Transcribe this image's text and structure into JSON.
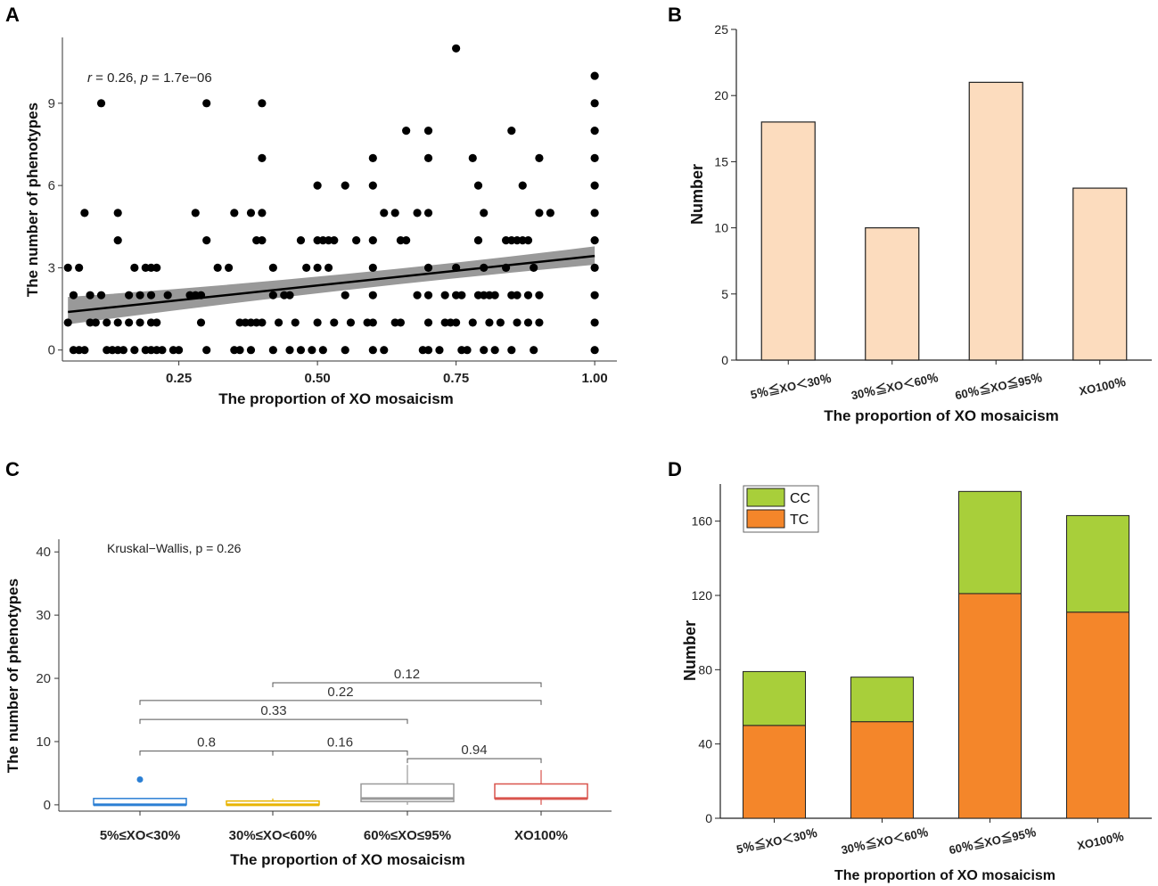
{
  "panel_labels": [
    "A",
    "B",
    "C",
    "D"
  ],
  "chart_data": [
    {
      "panel": "A",
      "type": "scatter",
      "xlabel": "The proportion of XO mosaicism",
      "ylabel": "The number of phenotypes",
      "xlim": [
        0.04,
        1.04
      ],
      "ylim": [
        -0.4,
        11.4
      ],
      "xticks": [
        0.25,
        0.5,
        0.75,
        1.0
      ],
      "xtick_labels": [
        "0.25",
        "0.50",
        "0.75",
        "1.00"
      ],
      "yticks": [
        0,
        3,
        6,
        9
      ],
      "ytick_labels": [
        "0",
        "3",
        "6",
        "9"
      ],
      "annotation": {
        "r_symbol": "r",
        "r_text": " = 0.26, ",
        "p_symbol": "p",
        "p_text": " = 1.7e−06"
      },
      "colors": {
        "points": "#000000",
        "line": "#000000",
        "band": "#999999"
      },
      "regression": {
        "intercept": 1.28,
        "slope": 2.15,
        "band_low": [
          0.45,
          0.32
        ],
        "band_high": [
          0.55,
          0.35
        ]
      },
      "points": [
        [
          0.05,
          1
        ],
        [
          0.05,
          3
        ],
        [
          0.06,
          0
        ],
        [
          0.06,
          2
        ],
        [
          0.07,
          0
        ],
        [
          0.07,
          3
        ],
        [
          0.08,
          0
        ],
        [
          0.08,
          5
        ],
        [
          0.09,
          1
        ],
        [
          0.09,
          2
        ],
        [
          0.1,
          1
        ],
        [
          0.11,
          2
        ],
        [
          0.11,
          9
        ],
        [
          0.12,
          0
        ],
        [
          0.12,
          1
        ],
        [
          0.13,
          0
        ],
        [
          0.14,
          0
        ],
        [
          0.14,
          1
        ],
        [
          0.14,
          4
        ],
        [
          0.14,
          5
        ],
        [
          0.15,
          0
        ],
        [
          0.16,
          1
        ],
        [
          0.16,
          2
        ],
        [
          0.17,
          0
        ],
        [
          0.17,
          3
        ],
        [
          0.18,
          1
        ],
        [
          0.18,
          2
        ],
        [
          0.19,
          0
        ],
        [
          0.19,
          3
        ],
        [
          0.2,
          0
        ],
        [
          0.2,
          1
        ],
        [
          0.2,
          2
        ],
        [
          0.2,
          3
        ],
        [
          0.21,
          0
        ],
        [
          0.21,
          1
        ],
        [
          0.21,
          3
        ],
        [
          0.22,
          0
        ],
        [
          0.23,
          2
        ],
        [
          0.24,
          0
        ],
        [
          0.25,
          0
        ],
        [
          0.27,
          2
        ],
        [
          0.28,
          2
        ],
        [
          0.28,
          5
        ],
        [
          0.29,
          1
        ],
        [
          0.29,
          2
        ],
        [
          0.3,
          0
        ],
        [
          0.3,
          4
        ],
        [
          0.3,
          9
        ],
        [
          0.32,
          3
        ],
        [
          0.34,
          3
        ],
        [
          0.35,
          0
        ],
        [
          0.35,
          5
        ],
        [
          0.36,
          0
        ],
        [
          0.36,
          1
        ],
        [
          0.37,
          1
        ],
        [
          0.38,
          0
        ],
        [
          0.38,
          1
        ],
        [
          0.38,
          5
        ],
        [
          0.39,
          1
        ],
        [
          0.39,
          4
        ],
        [
          0.4,
          1
        ],
        [
          0.4,
          4
        ],
        [
          0.4,
          5
        ],
        [
          0.4,
          7
        ],
        [
          0.4,
          9
        ],
        [
          0.42,
          0
        ],
        [
          0.42,
          2
        ],
        [
          0.42,
          3
        ],
        [
          0.43,
          1
        ],
        [
          0.44,
          2
        ],
        [
          0.45,
          2
        ],
        [
          0.45,
          0
        ],
        [
          0.46,
          1
        ],
        [
          0.47,
          0
        ],
        [
          0.47,
          4
        ],
        [
          0.48,
          3
        ],
        [
          0.49,
          0
        ],
        [
          0.5,
          1
        ],
        [
          0.5,
          3
        ],
        [
          0.5,
          4
        ],
        [
          0.5,
          6
        ],
        [
          0.51,
          0
        ],
        [
          0.51,
          4
        ],
        [
          0.52,
          3
        ],
        [
          0.52,
          4
        ],
        [
          0.53,
          1
        ],
        [
          0.53,
          4
        ],
        [
          0.55,
          0
        ],
        [
          0.55,
          2
        ],
        [
          0.55,
          6
        ],
        [
          0.56,
          1
        ],
        [
          0.57,
          4
        ],
        [
          0.59,
          1
        ],
        [
          0.6,
          0
        ],
        [
          0.6,
          1
        ],
        [
          0.6,
          2
        ],
        [
          0.6,
          3
        ],
        [
          0.6,
          4
        ],
        [
          0.6,
          6
        ],
        [
          0.6,
          7
        ],
        [
          0.62,
          0
        ],
        [
          0.62,
          5
        ],
        [
          0.64,
          5
        ],
        [
          0.64,
          1
        ],
        [
          0.65,
          1
        ],
        [
          0.65,
          4
        ],
        [
          0.66,
          4
        ],
        [
          0.66,
          8
        ],
        [
          0.68,
          2
        ],
        [
          0.68,
          5
        ],
        [
          0.69,
          0
        ],
        [
          0.7,
          0
        ],
        [
          0.7,
          1
        ],
        [
          0.7,
          2
        ],
        [
          0.7,
          3
        ],
        [
          0.7,
          5
        ],
        [
          0.7,
          7
        ],
        [
          0.7,
          8
        ],
        [
          0.72,
          0
        ],
        [
          0.73,
          1
        ],
        [
          0.73,
          2
        ],
        [
          0.74,
          1
        ],
        [
          0.75,
          1
        ],
        [
          0.75,
          2
        ],
        [
          0.75,
          3
        ],
        [
          0.75,
          11
        ],
        [
          0.76,
          0
        ],
        [
          0.76,
          2
        ],
        [
          0.77,
          0
        ],
        [
          0.78,
          1
        ],
        [
          0.78,
          7
        ],
        [
          0.79,
          2
        ],
        [
          0.79,
          4
        ],
        [
          0.79,
          6
        ],
        [
          0.8,
          0
        ],
        [
          0.8,
          2
        ],
        [
          0.8,
          3
        ],
        [
          0.8,
          5
        ],
        [
          0.81,
          1
        ],
        [
          0.81,
          2
        ],
        [
          0.82,
          0
        ],
        [
          0.82,
          2
        ],
        [
          0.83,
          1
        ],
        [
          0.84,
          3
        ],
        [
          0.84,
          4
        ],
        [
          0.85,
          0
        ],
        [
          0.85,
          2
        ],
        [
          0.85,
          4
        ],
        [
          0.85,
          8
        ],
        [
          0.86,
          1
        ],
        [
          0.86,
          2
        ],
        [
          0.86,
          4
        ],
        [
          0.87,
          4
        ],
        [
          0.87,
          6
        ],
        [
          0.88,
          1
        ],
        [
          0.88,
          2
        ],
        [
          0.88,
          4
        ],
        [
          0.89,
          0
        ],
        [
          0.89,
          3
        ],
        [
          0.9,
          1
        ],
        [
          0.9,
          2
        ],
        [
          0.9,
          5
        ],
        [
          0.9,
          7
        ],
        [
          0.92,
          5
        ],
        [
          1.0,
          0
        ],
        [
          1.0,
          1
        ],
        [
          1.0,
          2
        ],
        [
          1.0,
          3
        ],
        [
          1.0,
          4
        ],
        [
          1.0,
          5
        ],
        [
          1.0,
          6
        ],
        [
          1.0,
          7
        ],
        [
          1.0,
          8
        ],
        [
          1.0,
          9
        ],
        [
          1.0,
          10
        ]
      ]
    },
    {
      "panel": "B",
      "type": "bar",
      "categories": [
        "5％≦XO＜30％",
        "30％≦XO＜60％",
        "60％≦XO≦95％",
        "XO100％"
      ],
      "values": [
        18,
        10,
        21,
        13
      ],
      "xlabel": "The proportion of XO mosaicism",
      "ylabel": "Number",
      "ylim": [
        0,
        25
      ],
      "yticks": [
        0,
        5,
        10,
        15,
        20,
        25
      ],
      "ytick_labels": [
        "0",
        "5",
        "10",
        "15",
        "20",
        "25"
      ],
      "colors": {
        "bar": "#fcdcbe",
        "edge": "#222222"
      }
    },
    {
      "panel": "C",
      "type": "box",
      "categories": [
        "5%≤XO<30%",
        "30%≤XO<60%",
        "60%≤XO≤95%",
        "XO100%"
      ],
      "boxes": [
        {
          "q1": 0,
          "median": 0,
          "q3": 1,
          "whisker_low": 0,
          "whisker_high": 1,
          "outliers": [
            4
          ],
          "color": "#2b7fd4"
        },
        {
          "q1": 0,
          "median": 0,
          "q3": 0.6,
          "whisker_low": 0,
          "whisker_high": 1,
          "outliers": [],
          "color": "#e8b400"
        },
        {
          "q1": 0.5,
          "median": 1,
          "q3": 3.3,
          "whisker_low": 0,
          "whisker_high": 6.3,
          "outliers": [],
          "color": "#999999"
        },
        {
          "q1": 1,
          "median": 1,
          "q3": 3.3,
          "whisker_low": 0,
          "whisker_high": 5.5,
          "outliers": [],
          "color": "#d9544d"
        }
      ],
      "xlabel": "The proportion of XO mosaicism",
      "ylabel": "The number of phenotypes",
      "ylim": [
        -1,
        42
      ],
      "yticks": [
        0,
        10,
        20,
        30,
        40
      ],
      "ytick_labels": [
        "0",
        "10",
        "20",
        "30",
        "40"
      ],
      "test_label": "Kruskal−Wallis, p = 0.26",
      "comparisons": [
        {
          "from": 1,
          "to": 2,
          "y": 8.5,
          "label": "0.8"
        },
        {
          "from": 2,
          "to": 3,
          "y": 8.5,
          "label": "0.16"
        },
        {
          "from": 3,
          "to": 4,
          "y": 7.3,
          "label": "0.94"
        },
        {
          "from": 1,
          "to": 3,
          "y": 13.5,
          "label": "0.33"
        },
        {
          "from": 1,
          "to": 4,
          "y": 16.5,
          "label": "0.22"
        },
        {
          "from": 2,
          "to": 4,
          "y": 19.3,
          "label": "0.12"
        }
      ]
    },
    {
      "panel": "D",
      "type": "bar",
      "stacked": true,
      "categories": [
        "5％≦XO＜30％",
        "30％≦XO＜60％",
        "60％≦XO≦95％",
        "XO100％"
      ],
      "series": [
        {
          "name": "TC",
          "values": [
            50,
            52,
            121,
            111
          ],
          "color": "#f4862a"
        },
        {
          "name": "CC",
          "values": [
            29,
            24,
            55,
            52
          ],
          "color": "#a8cf3a"
        }
      ],
      "legend": [
        "CC",
        "TC"
      ],
      "legend_position": "top-left",
      "xlabel": "The proportion of XO mosaicism",
      "ylabel": "Number",
      "ylim": [
        0,
        180
      ],
      "yticks": [
        0,
        40,
        80,
        120,
        160
      ],
      "ytick_labels": [
        "0",
        "40",
        "80",
        "120",
        "160"
      ]
    }
  ]
}
